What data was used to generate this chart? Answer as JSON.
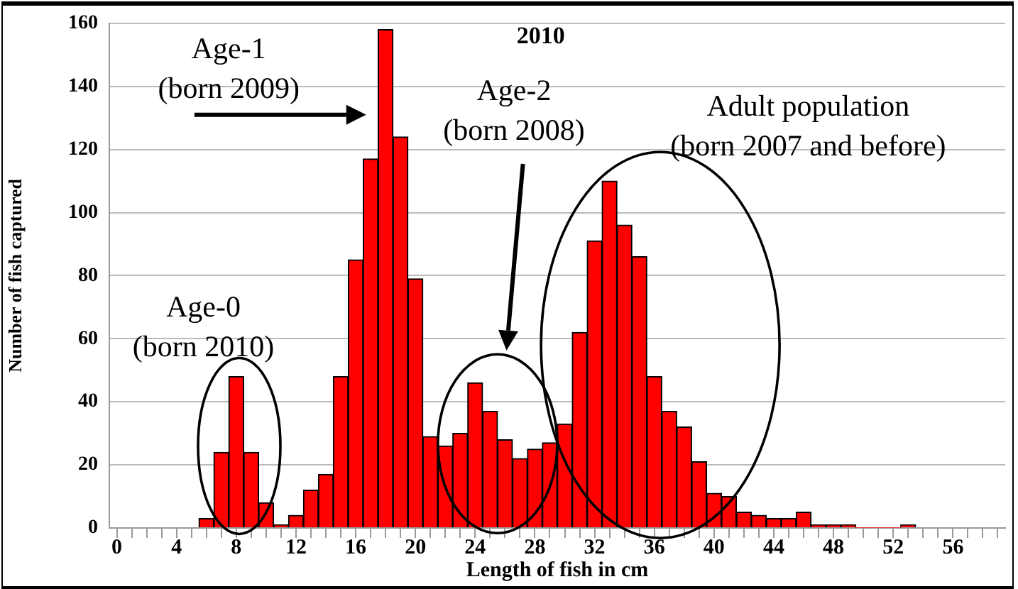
{
  "chart_data": {
    "type": "histogram",
    "title": "2010",
    "xlabel": "Length of fish in cm",
    "ylabel": "Number of fish captured",
    "bins": [
      5.5,
      6.5,
      7.5,
      8.5,
      9.5,
      10.5,
      11.5,
      12.5,
      13.5,
      14.5,
      15.5,
      16.5,
      17.5,
      18.5,
      19.5,
      20.5,
      21.5,
      22.5,
      23.5,
      24.5,
      25.5,
      26.5,
      27.5,
      28.5,
      29.5,
      30.5,
      31.5,
      32.5,
      33.5,
      34.5,
      35.5,
      36.5,
      37.5,
      38.5,
      39.5,
      40.5,
      41.5,
      42.5,
      43.5,
      44.5,
      45.5,
      46.5,
      47.5,
      48.5,
      49.5,
      50.5,
      51.5,
      52.5,
      53.5
    ],
    "values": [
      3,
      24,
      48,
      24,
      8,
      1,
      4,
      12,
      17,
      48,
      85,
      117,
      158,
      124,
      79,
      29,
      26,
      30,
      46,
      37,
      28,
      22,
      25,
      27,
      33,
      62,
      91,
      110,
      96,
      86,
      48,
      37,
      32,
      21,
      11,
      10,
      5,
      4,
      3,
      3,
      5,
      1,
      1,
      1,
      0,
      0,
      0,
      1
    ],
    "color": "#ff0000",
    "xlim": [
      -0.5,
      59.5
    ],
    "ylim": [
      0,
      160
    ],
    "xticks": [
      0,
      {
        "value": 1,
        "label": null
      },
      {
        "value": 2,
        "label": null
      },
      {
        "value": 3,
        "label": null
      },
      4,
      {
        "value": 5,
        "label": null
      },
      {
        "value": 6,
        "label": null
      },
      {
        "value": 7,
        "label": null
      },
      8,
      {
        "value": 9,
        "label": null
      },
      {
        "value": 10,
        "label": null
      },
      {
        "value": 11,
        "label": null
      },
      12,
      {
        "value": 13,
        "label": null
      },
      {
        "value": 14,
        "label": null
      },
      {
        "value": 15,
        "label": null
      },
      16,
      {
        "value": 17,
        "label": null
      },
      {
        "value": 18,
        "label": null
      },
      {
        "value": 19,
        "label": null
      },
      20,
      {
        "value": 21,
        "label": null
      },
      {
        "value": 22,
        "label": null
      },
      {
        "value": 23,
        "label": null
      },
      24,
      {
        "value": 25,
        "label": null
      },
      {
        "value": 26,
        "label": null
      },
      {
        "value": 27,
        "label": null
      },
      28,
      {
        "value": 29,
        "label": null
      },
      {
        "value": 30,
        "label": null
      },
      {
        "value": 31,
        "label": null
      },
      32,
      {
        "value": 33,
        "label": null
      },
      {
        "value": 34,
        "label": null
      },
      {
        "value": 35,
        "label": null
      },
      36,
      {
        "value": 37,
        "label": null
      },
      {
        "value": 38,
        "label": null
      },
      {
        "value": 39,
        "label": null
      },
      40,
      {
        "value": 41,
        "label": null
      },
      {
        "value": 42,
        "label": null
      },
      {
        "value": 43,
        "label": null
      },
      44,
      {
        "value": 45,
        "label": null
      },
      {
        "value": 46,
        "label": null
      },
      {
        "value": 47,
        "label": null
      },
      48,
      {
        "value": 49,
        "label": null
      },
      {
        "value": 50,
        "label": null
      },
      {
        "value": 51,
        "label": null
      },
      52,
      {
        "value": 53,
        "label": null
      },
      {
        "value": 54,
        "label": null
      },
      {
        "value": 55,
        "label": null
      },
      56,
      {
        "value": 57,
        "label": null
      },
      {
        "value": 58,
        "label": null
      },
      {
        "value": 59,
        "label": null
      }
    ],
    "yticks": [
      0,
      20,
      40,
      60,
      80,
      100,
      120,
      140,
      160
    ],
    "grid": "y",
    "annotations": [
      "Age-1\n(born 2009)",
      "Age-2\n(born 2008)",
      "Adult population\n(born 2007 and before)",
      "Age-0\n(born 2010)"
    ]
  }
}
